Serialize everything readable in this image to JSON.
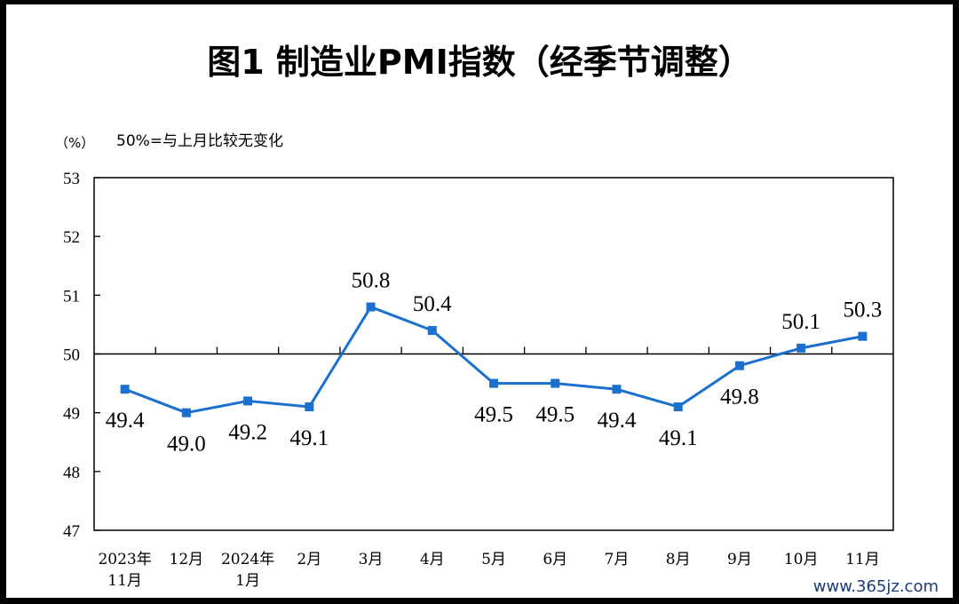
{
  "watermark": "www.365jz.com",
  "chart_data": {
    "type": "line",
    "title": "图1  制造业PMI指数（经季节调整）",
    "unit_label": "（%）",
    "note": "50%=与上月比较无变化",
    "categories": [
      [
        "2023年",
        "11月"
      ],
      [
        "12月"
      ],
      [
        "2024年",
        "1月"
      ],
      [
        "2月"
      ],
      [
        "3月"
      ],
      [
        "4月"
      ],
      [
        "5月"
      ],
      [
        "6月"
      ],
      [
        "7月"
      ],
      [
        "8月"
      ],
      [
        "9月"
      ],
      [
        "10月"
      ],
      [
        "11月"
      ]
    ],
    "values": [
      49.4,
      49.0,
      49.2,
      49.1,
      50.8,
      50.4,
      49.5,
      49.5,
      49.4,
      49.1,
      49.8,
      50.1,
      50.3
    ],
    "value_labels": [
      "49.4",
      "49.0",
      "49.2",
      "49.1",
      "50.8",
      "50.4",
      "49.5",
      "49.5",
      "49.4",
      "49.1",
      "49.8",
      "50.1",
      "50.3"
    ],
    "label_position": [
      "below",
      "below",
      "below",
      "below",
      "above",
      "above",
      "below",
      "below",
      "below",
      "below",
      "below",
      "above",
      "above"
    ],
    "yticks": [
      "47",
      "48",
      "49",
      "50",
      "51",
      "52",
      "53"
    ],
    "ylim": [
      47,
      53
    ],
    "reference_line": 50,
    "line_color": "#1a6fcf",
    "grid": false
  }
}
